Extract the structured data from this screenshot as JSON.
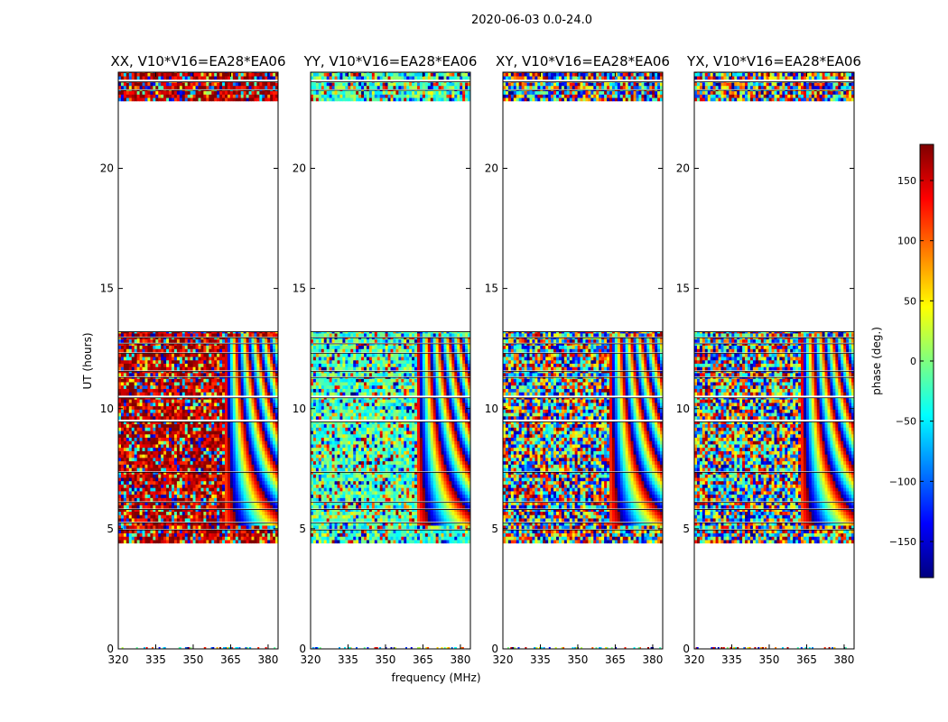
{
  "figure": {
    "suptitle": "2020-06-03 0.0-24.0",
    "ylabel": "UT (hours)",
    "xlabel": "frequency (MHz)"
  },
  "chart_data": [
    {
      "type": "heatmap",
      "title": "XX, V10*V16=EA28*EA06",
      "xlim": [
        320,
        384
      ],
      "ylim": [
        0,
        24
      ],
      "xticks": [
        320,
        335,
        350,
        365,
        380
      ],
      "yticks": [
        0,
        5,
        10,
        15,
        20
      ],
      "dominant_phase_deg": 160
    },
    {
      "type": "heatmap",
      "title": "YY, V10*V16=EA28*EA06",
      "xlim": [
        320,
        384
      ],
      "ylim": [
        0,
        24
      ],
      "xticks": [
        320,
        335,
        350,
        365,
        380
      ],
      "yticks": [
        0,
        5,
        10,
        15,
        20
      ],
      "dominant_phase_deg": -20
    },
    {
      "type": "heatmap",
      "title": "XY, V10*V16=EA28*EA06",
      "xlim": [
        320,
        384
      ],
      "ylim": [
        0,
        24
      ],
      "xticks": [
        320,
        335,
        350,
        365,
        380
      ],
      "yticks": [
        0,
        5,
        10,
        15,
        20
      ],
      "dominant_phase_deg": null
    },
    {
      "type": "heatmap",
      "title": "YX, V10*V16=EA28*EA06",
      "xlim": [
        320,
        384
      ],
      "ylim": [
        0,
        24
      ],
      "xticks": [
        320,
        335,
        350,
        365,
        380
      ],
      "yticks": [
        0,
        5,
        10,
        15,
        20
      ],
      "dominant_phase_deg": null
    }
  ],
  "data_bands_ut_hours": [
    [
      4.4,
      4.95
    ],
    [
      5.0,
      5.25
    ],
    [
      5.3,
      5.8
    ],
    [
      5.85,
      6.1
    ],
    [
      6.15,
      7.35
    ],
    [
      7.4,
      9.45
    ],
    [
      9.55,
      10.45
    ],
    [
      10.55,
      11.3
    ],
    [
      11.35,
      11.55
    ],
    [
      11.6,
      12.3
    ],
    [
      12.35,
      12.7
    ],
    [
      12.75,
      12.95
    ],
    [
      13.0,
      13.2
    ],
    [
      22.8,
      23.25
    ],
    [
      23.3,
      23.6
    ],
    [
      23.7,
      24.0
    ]
  ],
  "colorbar": {
    "label": "phase (deg.)",
    "range": [
      -180,
      180
    ],
    "ticks": [
      "150",
      "100",
      "50",
      "0",
      "−50",
      "−100",
      "−150"
    ],
    "tick_values": [
      150,
      100,
      50,
      0,
      -50,
      -100,
      -150
    ],
    "colormap": "jet",
    "colors": [
      "#00007f",
      "#0000ff",
      "#007fff",
      "#00ffff",
      "#7fff7f",
      "#ffff00",
      "#ff7f00",
      "#ff0000",
      "#7f0000"
    ]
  }
}
